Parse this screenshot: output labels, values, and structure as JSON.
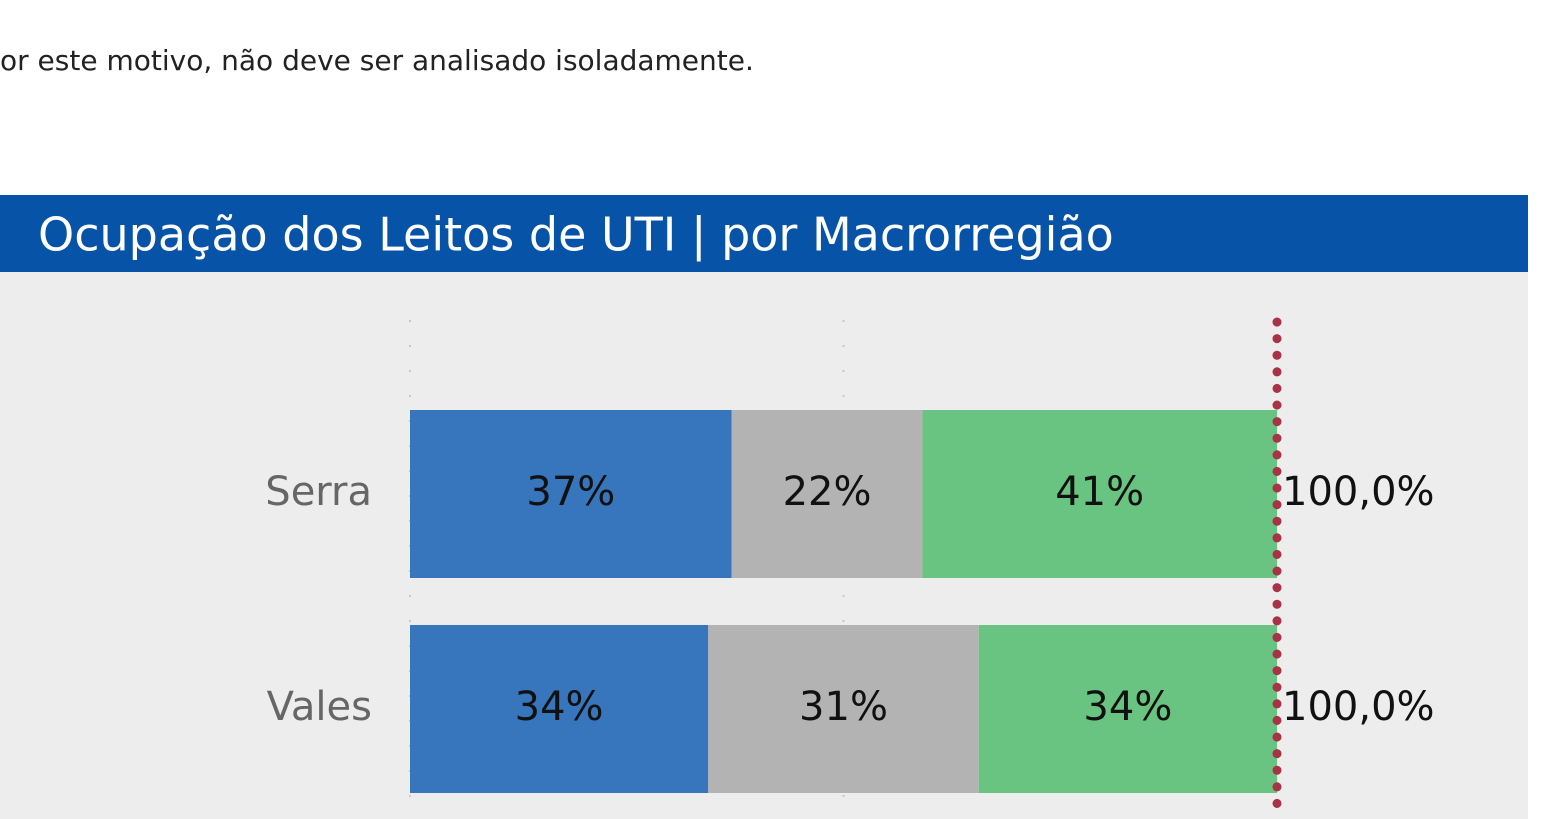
{
  "intro_text": "or este motivo, não deve ser analisado isoladamente.",
  "chart_data": {
    "type": "stacked_barh",
    "title": "Ocupação dos Leitos de UTI | por Macrorregião",
    "categories": [
      "Serra",
      "Vales"
    ],
    "series": [
      {
        "color": "#3775bd",
        "values": [
          37.1,
          34.4
        ],
        "value_labels": [
          "37%",
          "34%"
        ]
      },
      {
        "color": "#b3b3b3",
        "values": [
          22.0,
          31.2
        ],
        "value_labels": [
          "22%",
          "31%"
        ]
      },
      {
        "color": "#69c381",
        "values": [
          40.9,
          34.4
        ],
        "value_labels": [
          "41%",
          "34%"
        ]
      }
    ],
    "totals": [
      100.0,
      100.0
    ],
    "total_labels": [
      "100,0%",
      "100,0%"
    ],
    "reference_line": 100,
    "reference_color": "#a83246",
    "xlim": [
      0,
      100
    ],
    "xticks": [
      0,
      50
    ],
    "grid": true
  }
}
